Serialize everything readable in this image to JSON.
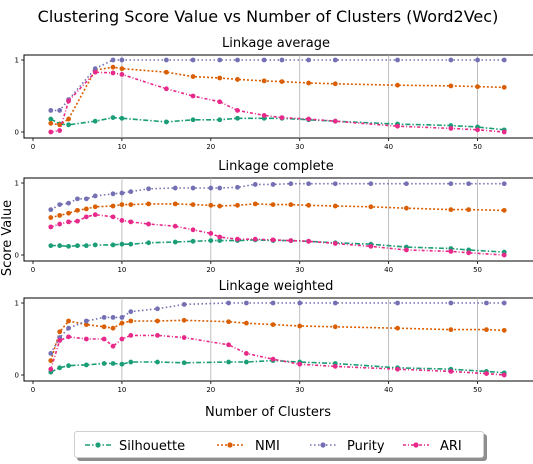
{
  "chart_data": {
    "type": "line",
    "title": "Clustering Score Value vs Number of Clusters (Word2Vec)",
    "ylabel": "Score Value",
    "xlabel": "Number of Clusters",
    "legend_position": "bottom",
    "colors": {
      "Silhouette": "#1b9e77",
      "NMI": "#d95f02",
      "Purity": "#7570b3",
      "ARI": "#e7298a"
    },
    "panels": [
      {
        "subtitle": "Linkage average",
        "xlim": [
          0,
          55
        ],
        "ylim": [
          0,
          1
        ],
        "xticks": [
          "0",
          "10",
          "20",
          "30",
          "40",
          "50"
        ],
        "yticks": [
          "0",
          "1"
        ],
        "vgrid": [
          10,
          30,
          40,
          50
        ],
        "x": [
          2,
          3,
          4,
          7,
          9,
          10,
          15,
          18,
          21,
          23,
          26,
          28,
          31,
          34,
          41,
          47,
          50,
          53
        ],
        "series": [
          {
            "name": "Silhouette",
            "values": [
              0.18,
              0.11,
              0.1,
              0.15,
              0.2,
              0.19,
              0.14,
              0.17,
              0.17,
              0.19,
              0.19,
              0.19,
              0.17,
              0.15,
              0.11,
              0.09,
              0.07,
              0.03
            ]
          },
          {
            "name": "NMI",
            "values": [
              0.12,
              0.1,
              0.18,
              0.86,
              0.9,
              0.88,
              0.83,
              0.77,
              0.75,
              0.73,
              0.71,
              0.7,
              0.68,
              0.67,
              0.65,
              0.64,
              0.63,
              0.62
            ]
          },
          {
            "name": "Purity",
            "values": [
              0.3,
              0.3,
              0.45,
              0.88,
              1.0,
              1.0,
              1.0,
              1.0,
              1.0,
              1.0,
              1.0,
              1.0,
              1.0,
              1.0,
              1.0,
              1.0,
              1.0,
              1.0
            ]
          },
          {
            "name": "ARI",
            "values": [
              0.0,
              0.02,
              0.43,
              0.83,
              0.82,
              0.8,
              0.6,
              0.5,
              0.42,
              0.3,
              0.23,
              0.2,
              0.18,
              0.15,
              0.08,
              0.05,
              0.03,
              0.0
            ]
          }
        ]
      },
      {
        "subtitle": "Linkage complete",
        "xlim": [
          0,
          55
        ],
        "ylim": [
          0,
          1
        ],
        "xticks": [
          "0",
          "10",
          "20",
          "30",
          "40",
          "50"
        ],
        "yticks": [
          "0",
          "1"
        ],
        "vgrid": [
          10,
          20,
          30,
          40,
          50
        ],
        "x": [
          2,
          3,
          4,
          5,
          6,
          7,
          9,
          10,
          11,
          13,
          16,
          18,
          20,
          21,
          23,
          25,
          27,
          29,
          31,
          34,
          38,
          42,
          47,
          49,
          53
        ],
        "series": [
          {
            "name": "Silhouette",
            "values": [
              0.13,
              0.13,
              0.12,
              0.13,
              0.13,
              0.14,
              0.14,
              0.15,
              0.15,
              0.17,
              0.18,
              0.19,
              0.2,
              0.2,
              0.2,
              0.21,
              0.2,
              0.2,
              0.19,
              0.17,
              0.15,
              0.11,
              0.09,
              0.07,
              0.04
            ]
          },
          {
            "name": "NMI",
            "values": [
              0.52,
              0.55,
              0.58,
              0.62,
              0.64,
              0.67,
              0.68,
              0.7,
              0.7,
              0.71,
              0.71,
              0.7,
              0.69,
              0.68,
              0.69,
              0.71,
              0.7,
              0.7,
              0.69,
              0.68,
              0.67,
              0.65,
              0.63,
              0.63,
              0.62
            ]
          },
          {
            "name": "Purity",
            "values": [
              0.63,
              0.7,
              0.72,
              0.78,
              0.78,
              0.82,
              0.85,
              0.86,
              0.88,
              0.92,
              0.93,
              0.93,
              0.93,
              0.93,
              0.94,
              0.98,
              0.98,
              0.99,
              0.99,
              0.99,
              0.99,
              0.99,
              0.99,
              0.99,
              0.99
            ]
          },
          {
            "name": "ARI",
            "values": [
              0.39,
              0.43,
              0.46,
              0.47,
              0.53,
              0.56,
              0.53,
              0.48,
              0.46,
              0.43,
              0.4,
              0.35,
              0.3,
              0.25,
              0.22,
              0.22,
              0.21,
              0.2,
              0.19,
              0.16,
              0.12,
              0.07,
              0.05,
              0.03,
              0.0
            ]
          }
        ]
      },
      {
        "subtitle": "Linkage weighted",
        "xlim": [
          0,
          55
        ],
        "ylim": [
          0,
          1
        ],
        "xticks": [
          "0",
          "10",
          "20",
          "30",
          "40",
          "50"
        ],
        "yticks": [
          "0",
          "1"
        ],
        "vgrid": [
          10,
          20,
          30,
          40,
          50
        ],
        "x": [
          2,
          3,
          4,
          6,
          8,
          9,
          10,
          11,
          14,
          17,
          22,
          24,
          27,
          30,
          34,
          41,
          47,
          51,
          53
        ],
        "series": [
          {
            "name": "Silhouette",
            "values": [
              0.04,
              0.1,
              0.13,
              0.14,
              0.16,
              0.16,
              0.15,
              0.18,
              0.18,
              0.17,
              0.18,
              0.18,
              0.2,
              0.18,
              0.16,
              0.1,
              0.08,
              0.05,
              0.03
            ]
          },
          {
            "name": "NMI",
            "values": [
              0.2,
              0.6,
              0.75,
              0.7,
              0.67,
              0.65,
              0.72,
              0.75,
              0.75,
              0.76,
              0.74,
              0.72,
              0.7,
              0.68,
              0.67,
              0.65,
              0.63,
              0.63,
              0.62
            ]
          },
          {
            "name": "Purity",
            "values": [
              0.3,
              0.52,
              0.65,
              0.75,
              0.8,
              0.8,
              0.8,
              0.88,
              0.92,
              0.98,
              1.0,
              1.0,
              1.0,
              1.0,
              1.0,
              1.0,
              1.0,
              1.0,
              1.0
            ]
          },
          {
            "name": "ARI",
            "values": [
              0.08,
              0.48,
              0.53,
              0.5,
              0.5,
              0.4,
              0.5,
              0.55,
              0.55,
              0.52,
              0.42,
              0.3,
              0.22,
              0.15,
              0.12,
              0.08,
              0.05,
              0.02,
              0.0
            ]
          }
        ]
      }
    ]
  }
}
